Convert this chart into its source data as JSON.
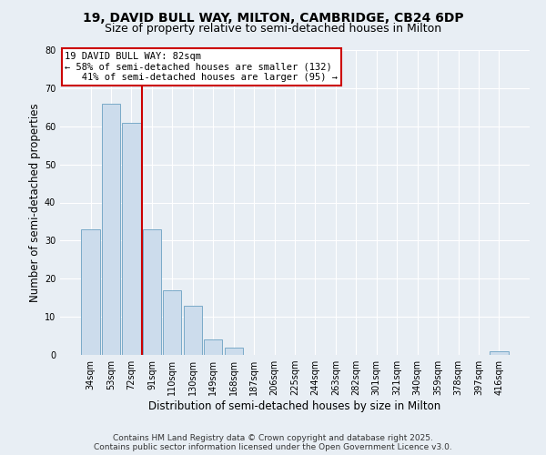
{
  "title": "19, DAVID BULL WAY, MILTON, CAMBRIDGE, CB24 6DP",
  "subtitle": "Size of property relative to semi-detached houses in Milton",
  "xlabel": "Distribution of semi-detached houses by size in Milton",
  "ylabel": "Number of semi-detached properties",
  "bin_labels": [
    "34sqm",
    "53sqm",
    "72sqm",
    "91sqm",
    "110sqm",
    "130sqm",
    "149sqm",
    "168sqm",
    "187sqm",
    "206sqm",
    "225sqm",
    "244sqm",
    "263sqm",
    "282sqm",
    "301sqm",
    "321sqm",
    "340sqm",
    "359sqm",
    "378sqm",
    "397sqm",
    "416sqm"
  ],
  "bar_values": [
    33,
    66,
    61,
    33,
    17,
    13,
    4,
    2,
    0,
    0,
    0,
    0,
    0,
    0,
    0,
    0,
    0,
    0,
    0,
    0,
    1
  ],
  "bar_color": "#ccdcec",
  "bar_edge_color": "#7aaac8",
  "ylim": [
    0,
    80
  ],
  "yticks": [
    0,
    10,
    20,
    30,
    40,
    50,
    60,
    70,
    80
  ],
  "property_line_x": 2.5,
  "property_line_color": "#cc0000",
  "annotation_text": "19 DAVID BULL WAY: 82sqm\n← 58% of semi-detached houses are smaller (132)\n   41% of semi-detached houses are larger (95) →",
  "annotation_box_facecolor": "#ffffff",
  "annotation_box_edgecolor": "#cc0000",
  "footer_line1": "Contains HM Land Registry data © Crown copyright and database right 2025.",
  "footer_line2": "Contains public sector information licensed under the Open Government Licence v3.0.",
  "background_color": "#e8eef4",
  "grid_color": "#ffffff",
  "title_fontsize": 10,
  "subtitle_fontsize": 9,
  "axis_label_fontsize": 8.5,
  "tick_fontsize": 7,
  "annotation_fontsize": 7.5,
  "footer_fontsize": 6.5
}
